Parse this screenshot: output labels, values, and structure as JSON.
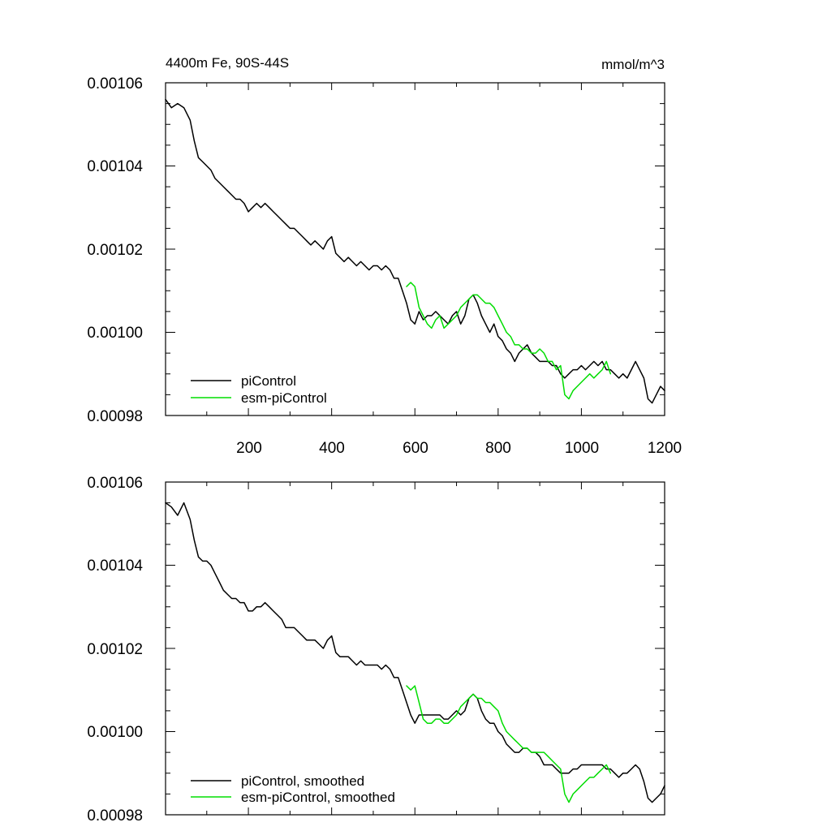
{
  "colors": {
    "piControl": "#000000",
    "esm_piControl": "#00dd00"
  },
  "top": {
    "title_left": "4400m Fe, 90S-44S",
    "title_right": "mmol/m^3",
    "y_tick_labels": [
      "0.00106",
      "0.00104",
      "0.00102",
      "0.00100",
      "0.00098"
    ],
    "x_tick_labels": [
      "200",
      "400",
      "600",
      "800",
      "1000",
      "1200"
    ],
    "legend": [
      "piControl",
      "esm-piControl"
    ]
  },
  "bottom": {
    "y_tick_labels": [
      "0.00106",
      "0.00104",
      "0.00102",
      "0.00100",
      "0.00098"
    ],
    "legend": [
      "piControl, smoothed",
      "esm-piControl, smoothed"
    ]
  },
  "chart_data": [
    {
      "type": "line",
      "title": "4400m Fe, 90S-44S",
      "unit": "mmol/m^3",
      "xlim": [
        1,
        1200
      ],
      "ylim": [
        0.00098,
        0.00106
      ],
      "x_ticks": [
        200,
        400,
        600,
        800,
        1000,
        1200
      ],
      "y_ticks": [
        0.00106,
        0.00104,
        0.00102,
        0.001,
        0.00098
      ],
      "series": [
        {
          "name": "piControl",
          "color": "#000000",
          "x": [
            1,
            15,
            30,
            45,
            60,
            70,
            80,
            90,
            100,
            110,
            120,
            130,
            140,
            150,
            160,
            170,
            180,
            190,
            200,
            210,
            220,
            230,
            240,
            250,
            260,
            270,
            280,
            290,
            300,
            310,
            320,
            330,
            340,
            350,
            360,
            370,
            380,
            390,
            400,
            410,
            420,
            430,
            440,
            450,
            460,
            470,
            480,
            490,
            500,
            510,
            520,
            530,
            540,
            550,
            560,
            570,
            580,
            590,
            600,
            610,
            620,
            630,
            640,
            650,
            660,
            670,
            680,
            690,
            700,
            710,
            720,
            730,
            740,
            750,
            760,
            770,
            780,
            790,
            800,
            810,
            820,
            830,
            840,
            850,
            860,
            870,
            880,
            890,
            900,
            910,
            920,
            930,
            940,
            950,
            960,
            970,
            980,
            990,
            1000,
            1010,
            1020,
            1030,
            1040,
            1050,
            1060,
            1070,
            1080,
            1090,
            1100,
            1110,
            1120,
            1130,
            1140,
            1150,
            1160,
            1170,
            1180,
            1190,
            1200
          ],
          "y": [
            0.001056,
            0.001054,
            0.001055,
            0.001054,
            0.001051,
            0.001046,
            0.001042,
            0.001041,
            0.00104,
            0.001039,
            0.001037,
            0.001036,
            0.001035,
            0.001034,
            0.001033,
            0.001032,
            0.001032,
            0.001031,
            0.001029,
            0.00103,
            0.001031,
            0.00103,
            0.001031,
            0.00103,
            0.001029,
            0.001028,
            0.001027,
            0.001026,
            0.001025,
            0.001025,
            0.001024,
            0.001023,
            0.001022,
            0.001021,
            0.001022,
            0.001021,
            0.00102,
            0.001022,
            0.001023,
            0.001019,
            0.001018,
            0.001017,
            0.001018,
            0.001017,
            0.001016,
            0.001017,
            0.001016,
            0.001015,
            0.001016,
            0.001016,
            0.001015,
            0.001016,
            0.001015,
            0.001013,
            0.001013,
            0.00101,
            0.001007,
            0.001003,
            0.001002,
            0.001005,
            0.001003,
            0.001004,
            0.001004,
            0.001005,
            0.001004,
            0.001003,
            0.001002,
            0.001004,
            0.001005,
            0.001002,
            0.001004,
            0.001008,
            0.001009,
            0.001007,
            0.001004,
            0.001002,
            0.001,
            0.001002,
            0.000999,
            0.000998,
            0.000996,
            0.000995,
            0.000993,
            0.000995,
            0.000996,
            0.000997,
            0.000995,
            0.000994,
            0.000993,
            0.000993,
            0.000993,
            0.000992,
            0.000992,
            0.00099,
            0.000989,
            0.00099,
            0.000991,
            0.000991,
            0.000992,
            0.000991,
            0.000992,
            0.000993,
            0.000992,
            0.000993,
            0.000991,
            0.000991,
            0.00099,
            0.000989,
            0.00099,
            0.000989,
            0.000991,
            0.000993,
            0.000991,
            0.000989,
            0.000984,
            0.000983,
            0.000985,
            0.000987,
            0.000986
          ]
        },
        {
          "name": "esm-piControl",
          "color": "#00dd00",
          "x": [
            580,
            590,
            600,
            610,
            620,
            630,
            640,
            650,
            660,
            670,
            680,
            690,
            700,
            710,
            720,
            730,
            740,
            750,
            760,
            770,
            780,
            790,
            800,
            810,
            820,
            830,
            840,
            850,
            860,
            870,
            880,
            890,
            900,
            910,
            920,
            930,
            940,
            950,
            960,
            970,
            980,
            990,
            1000,
            1010,
            1020,
            1030,
            1040,
            1050,
            1060,
            1070
          ],
          "y": [
            0.001011,
            0.001012,
            0.001011,
            0.001006,
            0.001004,
            0.001002,
            0.001001,
            0.001003,
            0.001004,
            0.001001,
            0.001002,
            0.001003,
            0.001004,
            0.001006,
            0.001007,
            0.001008,
            0.001009,
            0.001009,
            0.001008,
            0.001007,
            0.001007,
            0.001006,
            0.001004,
            0.001002,
            0.001,
            0.000999,
            0.000997,
            0.000997,
            0.000996,
            0.000996,
            0.000995,
            0.000995,
            0.000996,
            0.000995,
            0.000993,
            0.000993,
            0.000991,
            0.000992,
            0.000985,
            0.000984,
            0.000986,
            0.000987,
            0.000988,
            0.000989,
            0.00099,
            0.000989,
            0.00099,
            0.000991,
            0.000993,
            0.00099
          ]
        }
      ],
      "legend": [
        "piControl",
        "esm-piControl"
      ],
      "legend_position": "bottom-left"
    },
    {
      "type": "line",
      "title": "",
      "xlim": [
        1,
        1200
      ],
      "ylim": [
        0.00098,
        0.00106
      ],
      "y_ticks": [
        0.00106,
        0.00104,
        0.00102,
        0.001,
        0.00098
      ],
      "series": [
        {
          "name": "piControl, smoothed",
          "color": "#000000",
          "x": [
            1,
            15,
            30,
            45,
            60,
            70,
            80,
            90,
            100,
            110,
            120,
            130,
            140,
            150,
            160,
            170,
            180,
            190,
            200,
            210,
            220,
            230,
            240,
            250,
            260,
            270,
            280,
            290,
            300,
            310,
            320,
            330,
            340,
            350,
            360,
            370,
            380,
            390,
            400,
            410,
            420,
            430,
            440,
            450,
            460,
            470,
            480,
            490,
            500,
            510,
            520,
            530,
            540,
            550,
            560,
            570,
            580,
            590,
            600,
            610,
            620,
            630,
            640,
            650,
            660,
            670,
            680,
            690,
            700,
            710,
            720,
            730,
            740,
            750,
            760,
            770,
            780,
            790,
            800,
            810,
            820,
            830,
            840,
            850,
            860,
            870,
            880,
            890,
            900,
            910,
            920,
            930,
            940,
            950,
            960,
            970,
            980,
            990,
            1000,
            1010,
            1020,
            1030,
            1040,
            1050,
            1060,
            1070,
            1080,
            1090,
            1100,
            1110,
            1120,
            1130,
            1140,
            1150,
            1160,
            1170,
            1180,
            1190,
            1200
          ],
          "y": [
            0.001055,
            0.001054,
            0.001052,
            0.001055,
            0.001051,
            0.001046,
            0.001042,
            0.001041,
            0.001041,
            0.00104,
            0.001038,
            0.001036,
            0.001034,
            0.001033,
            0.001032,
            0.001032,
            0.001031,
            0.001031,
            0.001029,
            0.001029,
            0.00103,
            0.00103,
            0.001031,
            0.00103,
            0.001029,
            0.001028,
            0.001027,
            0.001025,
            0.001025,
            0.001025,
            0.001024,
            0.001023,
            0.001022,
            0.001022,
            0.001022,
            0.001021,
            0.00102,
            0.001022,
            0.001023,
            0.001019,
            0.001018,
            0.001018,
            0.001018,
            0.001017,
            0.001016,
            0.001017,
            0.001016,
            0.001016,
            0.001016,
            0.001016,
            0.001015,
            0.001016,
            0.001015,
            0.001013,
            0.001013,
            0.00101,
            0.001007,
            0.001004,
            0.001002,
            0.001004,
            0.001004,
            0.001004,
            0.001004,
            0.001004,
            0.001004,
            0.001003,
            0.001003,
            0.001004,
            0.001005,
            0.001004,
            0.001005,
            0.001008,
            0.001009,
            0.001008,
            0.001005,
            0.001003,
            0.001002,
            0.001002,
            0.001,
            0.000999,
            0.000997,
            0.000996,
            0.000995,
            0.000995,
            0.000996,
            0.000996,
            0.000995,
            0.000995,
            0.000994,
            0.000992,
            0.000992,
            0.000992,
            0.000991,
            0.00099,
            0.00099,
            0.00099,
            0.000991,
            0.000991,
            0.000992,
            0.000992,
            0.000992,
            0.000992,
            0.000992,
            0.000992,
            0.000991,
            0.000991,
            0.00099,
            0.000989,
            0.00099,
            0.00099,
            0.000991,
            0.000992,
            0.000991,
            0.000988,
            0.000984,
            0.000983,
            0.000984,
            0.000985,
            0.000987
          ]
        },
        {
          "name": "esm-piControl, smoothed",
          "color": "#00dd00",
          "x": [
            580,
            590,
            600,
            610,
            620,
            630,
            640,
            650,
            660,
            670,
            680,
            690,
            700,
            710,
            720,
            730,
            740,
            750,
            760,
            770,
            780,
            790,
            800,
            810,
            820,
            830,
            840,
            850,
            860,
            870,
            880,
            890,
            900,
            910,
            920,
            930,
            940,
            950,
            960,
            970,
            980,
            990,
            1000,
            1010,
            1020,
            1030,
            1040,
            1050,
            1060,
            1070
          ],
          "y": [
            0.001011,
            0.00101,
            0.001011,
            0.001007,
            0.001003,
            0.001002,
            0.001002,
            0.001003,
            0.001003,
            0.001002,
            0.001002,
            0.001003,
            0.001004,
            0.001006,
            0.001007,
            0.001008,
            0.001009,
            0.001008,
            0.001008,
            0.001007,
            0.001007,
            0.001006,
            0.001005,
            0.001002,
            0.001,
            0.000999,
            0.000998,
            0.000997,
            0.000996,
            0.000996,
            0.000995,
            0.000995,
            0.000995,
            0.000995,
            0.000994,
            0.000993,
            0.000992,
            0.000991,
            0.000985,
            0.000983,
            0.000985,
            0.000986,
            0.000987,
            0.000988,
            0.000989,
            0.000989,
            0.00099,
            0.000991,
            0.000992,
            0.00099
          ]
        }
      ],
      "legend": [
        "piControl, smoothed",
        "esm-piControl, smoothed"
      ],
      "legend_position": "bottom-left"
    }
  ]
}
